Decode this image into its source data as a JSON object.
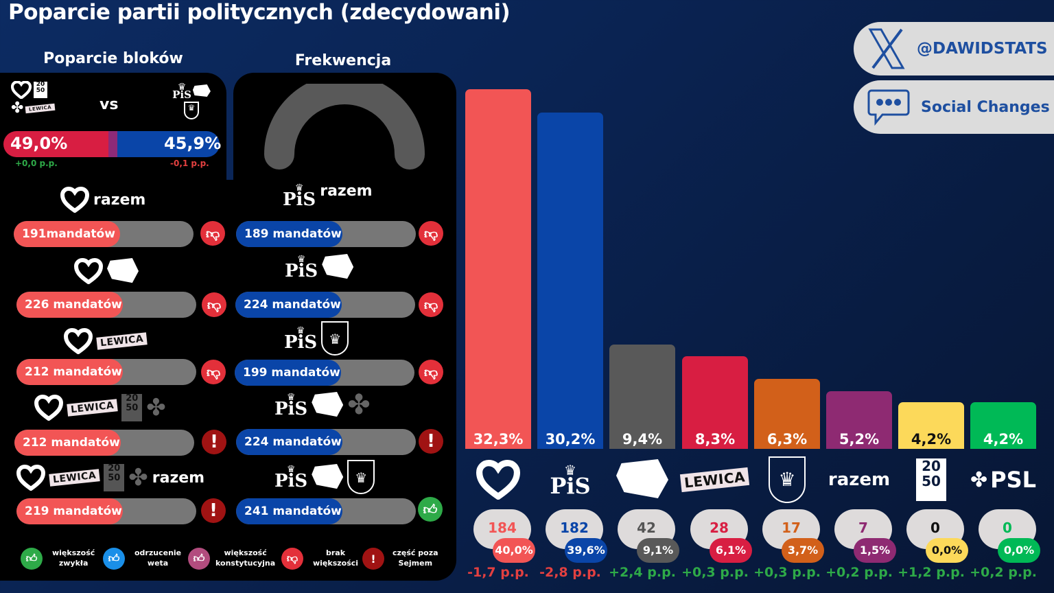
{
  "title": "Poparcie partii politycznych (zdecydowani)",
  "sections": {
    "blocs_title": "Poparcie bloków",
    "turnout_title": "Frekwencja"
  },
  "blocs": {
    "vs_label": "vs",
    "left": {
      "value": "49,0%",
      "change": "+0,0 p.p.",
      "color": "#d81e42",
      "change_color": "#2eaa48",
      "logos": [
        "heart-ko",
        "polska-2050",
        "psl-clover",
        "lewica"
      ]
    },
    "right": {
      "value": "45,9%",
      "change": "-0,1 p.p.",
      "color": "#0a45a8",
      "change_color": "#e34040",
      "logos": [
        "pis",
        "konfederacja",
        "korona"
      ]
    }
  },
  "turnout": {
    "value": null,
    "gauge_color": "#595959"
  },
  "coalitions": {
    "left_column": [
      {
        "parties": [
          "KO",
          "razem"
        ],
        "label": "191mandatów",
        "status": "brak-wiekszosci"
      },
      {
        "parties": [
          "KO",
          "Konfederacja"
        ],
        "label": "226 mandatów",
        "status": "brak-wiekszosci"
      },
      {
        "parties": [
          "KO",
          "Lewica"
        ],
        "label": "212 mandatów",
        "status": "brak-wiekszosci"
      },
      {
        "parties": [
          "KO",
          "Lewica",
          "Polska 2050",
          "PSL"
        ],
        "label": "212 mandatów",
        "status": "czesc-poza-sejmem"
      },
      {
        "parties": [
          "KO",
          "Lewica",
          "Polska 2050",
          "PSL",
          "razem"
        ],
        "label": "219 mandatów",
        "status": "czesc-poza-sejmem"
      }
    ],
    "right_column": [
      {
        "parties": [
          "PiS",
          "razem"
        ],
        "label": "189 mandatów",
        "status": "brak-wiekszosci"
      },
      {
        "parties": [
          "PiS",
          "Konfederacja"
        ],
        "label": "224 mandatów",
        "status": "brak-wiekszosci"
      },
      {
        "parties": [
          "PiS",
          "Korona"
        ],
        "label": "199 mandatów",
        "status": "brak-wiekszosci"
      },
      {
        "parties": [
          "PiS",
          "Konfederacja",
          "PSL"
        ],
        "label": "224 mandatów",
        "status": "czesc-poza-sejmem"
      },
      {
        "parties": [
          "PiS",
          "Konfederacja",
          "Korona"
        ],
        "label": "241 mandatów",
        "status": "wiekszosc-zwykla"
      }
    ],
    "razem_text": "razem",
    "lewica_text": "LEWICA"
  },
  "legend": [
    {
      "icon": "thumb-up",
      "color": "#2eaa48",
      "label_line1": "większość",
      "label_line2": "zwykła"
    },
    {
      "icon": "thumb-up",
      "color": "#1a8fe8",
      "label_line1": "odrzucenie",
      "label_line2": "weta"
    },
    {
      "icon": "thumb-up",
      "color": "#b24c7e",
      "label_line1": "większość",
      "label_line2": "konstytucyjna"
    },
    {
      "icon": "thumb-down",
      "color": "#e3303a",
      "label_line1": "brak",
      "label_line2": "większości"
    },
    {
      "icon": "exclamation",
      "color": "#a01313",
      "label_line1": "część poza",
      "label_line2": "Sejmem"
    }
  ],
  "social": {
    "x_handle": "@DAWIDSTATS",
    "brand": "Social Changes"
  },
  "chart_data": {
    "type": "bar",
    "title": "Poparcie partii politycznych (zdecydowani)",
    "categories": [
      "KO",
      "PiS",
      "Konfederacja",
      "Lewica",
      "Korona",
      "razem",
      "Polska 2050",
      "PSL"
    ],
    "values": [
      32.3,
      30.2,
      9.4,
      8.3,
      6.3,
      5.2,
      4.2,
      4.2
    ],
    "value_labels": [
      "32,3%",
      "30,2%",
      "9,4%",
      "8,3%",
      "6,3%",
      "5,2%",
      "4,2%",
      "4,2%"
    ],
    "colors": [
      "#f25555",
      "#0a45a8",
      "#595959",
      "#d81e42",
      "#d2601a",
      "#8e2a72",
      "#fcd95a",
      "#00b956"
    ],
    "seats": [
      184,
      182,
      42,
      28,
      17,
      7,
      0,
      0
    ],
    "seat_share": [
      "40,0%",
      "39,6%",
      "9,1%",
      "6,1%",
      "3,7%",
      "1,5%",
      "0,0%",
      "0,0%"
    ],
    "change": [
      "-1,7 p.p.",
      "-2,8 p.p.",
      "+2,4 p.p.",
      "+0,3 p.p.",
      "+0,3 p.p.",
      "+0,2 p.p.",
      "+1,2 p.p.",
      "+0,2 p.p."
    ],
    "change_colors": [
      "#e34040",
      "#e34040",
      "#2eaa48",
      "#2eaa48",
      "#2eaa48",
      "#2eaa48",
      "#2eaa48",
      "#2eaa48"
    ],
    "xlabel": "",
    "ylabel": "",
    "grid": false,
    "legend": "none",
    "ylim": [
      0,
      34
    ]
  },
  "chart_text": {
    "lewica": "LEWICA",
    "razem": "razem",
    "psl": "PSL"
  }
}
